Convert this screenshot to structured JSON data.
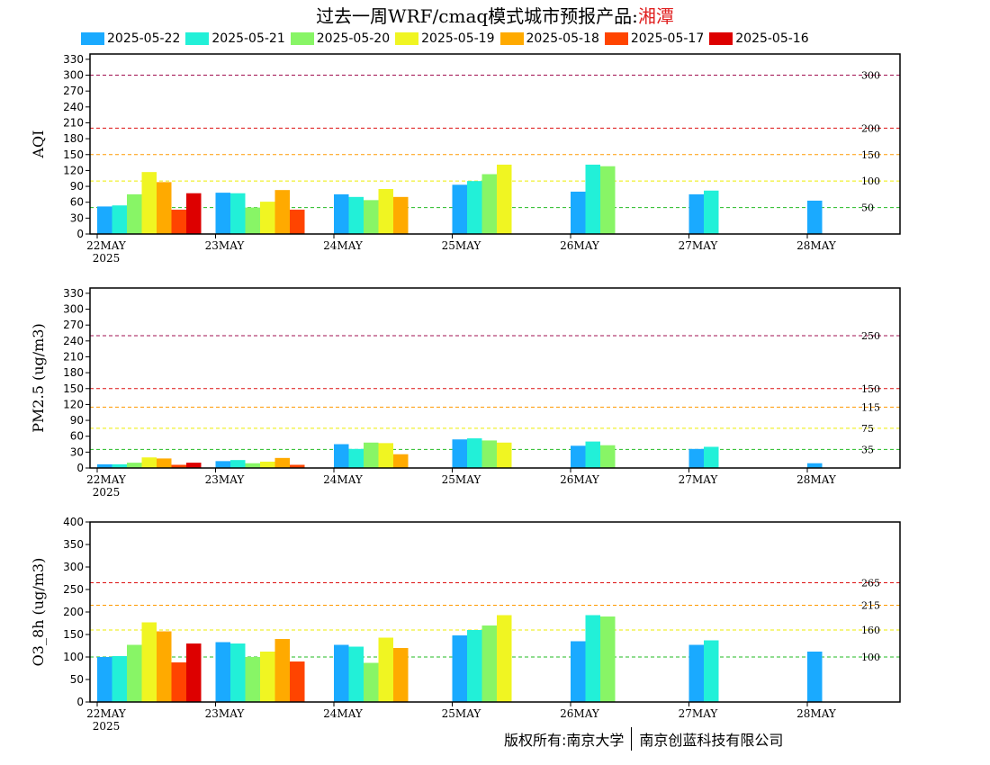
{
  "title": {
    "prefix": "过去一周WRF/cmaq模式城市预报产品:",
    "city": "湘潭"
  },
  "colors": {
    "threshold_green": "#22bb22",
    "threshold_yellow": "#eeee00",
    "threshold_orange": "#ff9900",
    "threshold_red": "#dd1111",
    "threshold_purple": "#a01050"
  },
  "chart_data": [
    {
      "type": "bar",
      "ylabel": "AQI",
      "ylim": [
        0,
        340
      ],
      "yticks": [
        0,
        30,
        60,
        90,
        120,
        150,
        180,
        210,
        240,
        270,
        300,
        330
      ],
      "categories": [
        "22MAY",
        "23MAY",
        "24MAY",
        "25MAY",
        "26MAY",
        "27MAY",
        "28MAY"
      ],
      "year_label": "2025",
      "thresholds": [
        {
          "value": 50,
          "label": "50",
          "color": "#22bb22"
        },
        {
          "value": 100,
          "label": "100",
          "color": "#eeee00"
        },
        {
          "value": 150,
          "label": "150",
          "color": "#ff9900"
        },
        {
          "value": 200,
          "label": "200",
          "color": "#dd1111"
        },
        {
          "value": 300,
          "label": "300",
          "color": "#a01050"
        }
      ],
      "series": [
        {
          "name": "2025-05-22",
          "color": "#1aaaff",
          "values": [
            52,
            78,
            75,
            93,
            80,
            75,
            63
          ]
        },
        {
          "name": "2025-05-21",
          "color": "#22f0d8",
          "values": [
            54,
            77,
            70,
            100,
            131,
            82,
            null
          ]
        },
        {
          "name": "2025-05-20",
          "color": "#88f566",
          "values": [
            75,
            50,
            64,
            113,
            128,
            null,
            null
          ]
        },
        {
          "name": "2025-05-19",
          "color": "#f0f522",
          "values": [
            117,
            61,
            85,
            131,
            null,
            null,
            null
          ]
        },
        {
          "name": "2025-05-18",
          "color": "#ffaa00",
          "values": [
            98,
            83,
            70,
            null,
            null,
            null,
            null
          ]
        },
        {
          "name": "2025-05-17",
          "color": "#ff4400",
          "values": [
            46,
            46,
            null,
            null,
            null,
            null,
            null
          ]
        },
        {
          "name": "2025-05-16",
          "color": "#dd0000",
          "values": [
            77,
            null,
            null,
            null,
            null,
            null,
            null
          ]
        }
      ]
    },
    {
      "type": "bar",
      "ylabel": "PM2.5 (ug/m3)",
      "ylim": [
        0,
        340
      ],
      "yticks": [
        0,
        30,
        60,
        90,
        120,
        150,
        180,
        210,
        240,
        270,
        300,
        330
      ],
      "categories": [
        "22MAY",
        "23MAY",
        "24MAY",
        "25MAY",
        "26MAY",
        "27MAY",
        "28MAY"
      ],
      "year_label": "2025",
      "thresholds": [
        {
          "value": 35,
          "label": "35",
          "color": "#22bb22"
        },
        {
          "value": 75,
          "label": "75",
          "color": "#eeee00"
        },
        {
          "value": 115,
          "label": "115",
          "color": "#ff9900"
        },
        {
          "value": 150,
          "label": "150",
          "color": "#dd1111"
        },
        {
          "value": 250,
          "label": "250",
          "color": "#a01050"
        }
      ],
      "series": [
        {
          "name": "2025-05-22",
          "color": "#1aaaff",
          "values": [
            7,
            13,
            45,
            54,
            42,
            36,
            9
          ]
        },
        {
          "name": "2025-05-21",
          "color": "#22f0d8",
          "values": [
            7,
            15,
            36,
            56,
            50,
            40,
            null
          ]
        },
        {
          "name": "2025-05-20",
          "color": "#88f566",
          "values": [
            10,
            9,
            48,
            52,
            43,
            null,
            null
          ]
        },
        {
          "name": "2025-05-19",
          "color": "#f0f522",
          "values": [
            20,
            12,
            47,
            48,
            null,
            null,
            null
          ]
        },
        {
          "name": "2025-05-18",
          "color": "#ffaa00",
          "values": [
            18,
            19,
            26,
            null,
            null,
            null,
            null
          ]
        },
        {
          "name": "2025-05-17",
          "color": "#ff4400",
          "values": [
            6,
            6,
            null,
            null,
            null,
            null,
            null
          ]
        },
        {
          "name": "2025-05-16",
          "color": "#dd0000",
          "values": [
            10,
            null,
            null,
            null,
            null,
            null,
            null
          ]
        }
      ]
    },
    {
      "type": "bar",
      "ylabel": "O3_8h (ug/m3)",
      "ylim": [
        0,
        400
      ],
      "yticks": [
        0,
        50,
        100,
        150,
        200,
        250,
        300,
        350,
        400
      ],
      "categories": [
        "22MAY",
        "23MAY",
        "24MAY",
        "25MAY",
        "26MAY",
        "27MAY",
        "28MAY"
      ],
      "year_label": "2025",
      "thresholds": [
        {
          "value": 100,
          "label": "100",
          "color": "#22bb22"
        },
        {
          "value": 160,
          "label": "160",
          "color": "#eeee00"
        },
        {
          "value": 215,
          "label": "215",
          "color": "#ff9900"
        },
        {
          "value": 265,
          "label": "265",
          "color": "#dd1111"
        }
      ],
      "series": [
        {
          "name": "2025-05-22",
          "color": "#1aaaff",
          "values": [
            100,
            133,
            127,
            148,
            135,
            127,
            112
          ]
        },
        {
          "name": "2025-05-21",
          "color": "#22f0d8",
          "values": [
            102,
            130,
            123,
            160,
            193,
            137,
            null
          ]
        },
        {
          "name": "2025-05-20",
          "color": "#88f566",
          "values": [
            127,
            100,
            87,
            170,
            190,
            null,
            null
          ]
        },
        {
          "name": "2025-05-19",
          "color": "#f0f522",
          "values": [
            177,
            112,
            143,
            193,
            null,
            null,
            null
          ]
        },
        {
          "name": "2025-05-18",
          "color": "#ffaa00",
          "values": [
            157,
            140,
            120,
            null,
            null,
            null,
            null
          ]
        },
        {
          "name": "2025-05-17",
          "color": "#ff4400",
          "values": [
            88,
            90,
            null,
            null,
            null,
            null,
            null
          ]
        },
        {
          "name": "2025-05-16",
          "color": "#dd0000",
          "values": [
            130,
            null,
            null,
            null,
            null,
            null,
            null
          ]
        }
      ]
    }
  ],
  "copyright": {
    "owner": "版权所有:南京大学",
    "company": "南京创蓝科技有限公司"
  }
}
